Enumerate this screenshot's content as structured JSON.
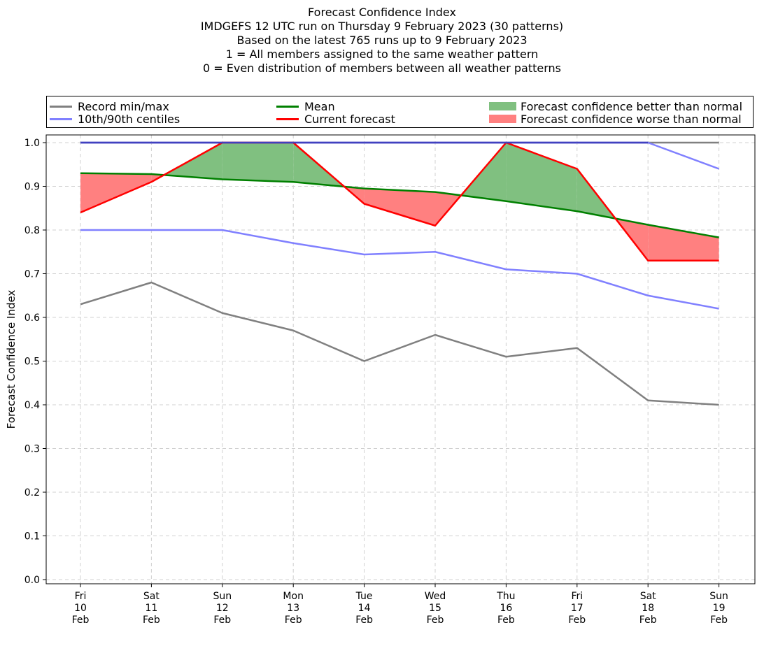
{
  "title_lines": [
    "Forecast Confidence Index",
    "IMDGEFS 12 UTC run on Thursday 9 February 2023 (30 patterns)",
    "Based on the latest 765 runs up to 9 February 2023",
    "1 = All members assigned to the same weather pattern",
    "0 = Even distribution of members between all weather patterns"
  ],
  "legend": {
    "record": "Record min/max",
    "centiles": "10th/90th centiles",
    "mean": "Mean",
    "current": "Current forecast",
    "better": "Forecast confidence better than normal",
    "worse": "Forecast confidence worse than normal"
  },
  "colors": {
    "record": "#808080",
    "centiles": "#8080ff",
    "mean": "#008000",
    "current": "#ff0000",
    "better": "#80c080",
    "worse": "#ff8080",
    "max_overlap": "#4040c0"
  },
  "chart_data": {
    "type": "line",
    "ylabel": "Forecast Confidence Index",
    "ylim": [
      0.0,
      1.0
    ],
    "yticks": [
      "0.0",
      "0.1",
      "0.2",
      "0.3",
      "0.4",
      "0.5",
      "0.6",
      "0.7",
      "0.8",
      "0.9",
      "1.0"
    ],
    "grid": true,
    "legend_position": "top",
    "categories": [
      [
        "Fri",
        "10",
        "Feb"
      ],
      [
        "Sat",
        "11",
        "Feb"
      ],
      [
        "Sun",
        "12",
        "Feb"
      ],
      [
        "Mon",
        "13",
        "Feb"
      ],
      [
        "Tue",
        "14",
        "Feb"
      ],
      [
        "Wed",
        "15",
        "Feb"
      ],
      [
        "Thu",
        "16",
        "Feb"
      ],
      [
        "Fri",
        "17",
        "Feb"
      ],
      [
        "Sat",
        "18",
        "Feb"
      ],
      [
        "Sun",
        "19",
        "Feb"
      ]
    ],
    "series": [
      {
        "name": "Record min/max",
        "key": "record_min",
        "values": [
          0.63,
          0.68,
          0.61,
          0.57,
          0.5,
          0.56,
          0.51,
          0.53,
          0.41,
          0.4
        ]
      },
      {
        "name": "Record min/max",
        "key": "record_max",
        "values": [
          1.0,
          1.0,
          1.0,
          1.0,
          1.0,
          1.0,
          1.0,
          1.0,
          1.0,
          1.0
        ]
      },
      {
        "name": "10th/90th centiles",
        "key": "p10",
        "values": [
          0.8,
          0.8,
          0.8,
          0.77,
          0.744,
          0.75,
          0.71,
          0.7,
          0.65,
          0.62
        ]
      },
      {
        "name": "10th/90th centiles",
        "key": "p90",
        "values": [
          1.0,
          1.0,
          1.0,
          1.0,
          1.0,
          1.0,
          1.0,
          1.0,
          1.0,
          0.94
        ]
      },
      {
        "name": "Mean",
        "key": "mean",
        "values": [
          0.93,
          0.928,
          0.916,
          0.91,
          0.895,
          0.887,
          0.866,
          0.843,
          0.812,
          0.783
        ]
      },
      {
        "name": "Current forecast",
        "key": "current",
        "values": [
          0.84,
          0.91,
          1.0,
          1.0,
          0.86,
          0.81,
          1.0,
          0.94,
          0.73,
          0.73
        ]
      }
    ]
  }
}
